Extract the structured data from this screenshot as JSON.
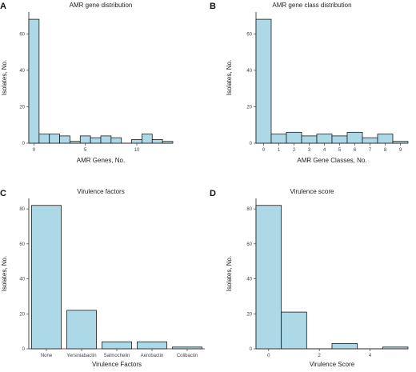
{
  "colors": {
    "bar_fill": "#add8e6",
    "bar_stroke": "#1a1a1a"
  },
  "chart_data": [
    {
      "panel": "A",
      "type": "bar",
      "title": "AMR gene distribution",
      "xlabel": "AMR Genes, No.",
      "ylabel": "Isolates, No.",
      "bin_width": 1,
      "x": [
        0,
        1,
        2,
        3,
        4,
        5,
        6,
        7,
        8,
        9,
        10,
        11,
        12,
        13
      ],
      "values": [
        68,
        5,
        5,
        4,
        1,
        4,
        3,
        4,
        3,
        0,
        2,
        5,
        2,
        1
      ],
      "xlim": [
        -0.5,
        13.5
      ],
      "ylim": [
        0,
        72
      ],
      "x_ticks": [
        0,
        5,
        10
      ],
      "y_ticks": [
        0,
        20,
        40,
        60
      ],
      "grid": false
    },
    {
      "panel": "B",
      "type": "bar",
      "title": "AMR gene class distribution",
      "xlabel": "AMR Gene Classes, No.",
      "ylabel": "Isolates, No.",
      "bin_width": 1,
      "x": [
        0,
        1,
        2,
        3,
        4,
        5,
        6,
        7,
        8,
        9
      ],
      "values": [
        68,
        5,
        6,
        4,
        5,
        4,
        6,
        3,
        5,
        1
      ],
      "xlim": [
        -0.5,
        9.5
      ],
      "ylim": [
        0,
        72
      ],
      "x_ticks": [
        0,
        1,
        2,
        3,
        4,
        5,
        6,
        7,
        8,
        9
      ],
      "y_ticks": [
        0,
        20,
        40,
        60
      ],
      "grid": false
    },
    {
      "panel": "C",
      "type": "bar",
      "title": "Virulence factors",
      "xlabel": "Virulence Factors",
      "ylabel": "Isolates, No.",
      "categories": [
        "None",
        "Yersiniabactin",
        "Salmochelin",
        "Aerobactin",
        "Colibactin"
      ],
      "values": [
        82,
        22,
        4,
        4,
        1
      ],
      "ylim": [
        0,
        86
      ],
      "y_ticks": [
        0,
        20,
        40,
        60,
        80
      ],
      "grid": false
    },
    {
      "panel": "D",
      "type": "bar",
      "title": "Virulence score",
      "xlabel": "Virulence Score",
      "ylabel": "Isolates, No.",
      "bin_width": 1,
      "x": [
        0,
        1,
        2,
        3,
        4,
        5
      ],
      "values": [
        82,
        21,
        0,
        3,
        0,
        1
      ],
      "xlim": [
        -0.5,
        5.5
      ],
      "ylim": [
        0,
        86
      ],
      "x_ticks": [
        0,
        2,
        4
      ],
      "y_ticks": [
        0,
        20,
        40,
        60,
        80
      ],
      "grid": false
    }
  ]
}
